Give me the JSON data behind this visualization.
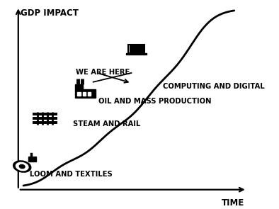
{
  "background_color": "#ffffff",
  "curve_color": "#000000",
  "curve_linewidth": 2.0,
  "axis_label_x": "GDP IMPACT",
  "axis_label_y": "TIME",
  "labels": {
    "loom": "LOOM AND TEXTILES",
    "steam": "STEAM AND RAIL",
    "oil": "OIL AND MASS PRODUCTION",
    "computing": "COMPUTING AND DIGITAL",
    "we_are_here": "WE ARE HERE"
  },
  "fontsize": 7.2,
  "fontweight": "bold"
}
